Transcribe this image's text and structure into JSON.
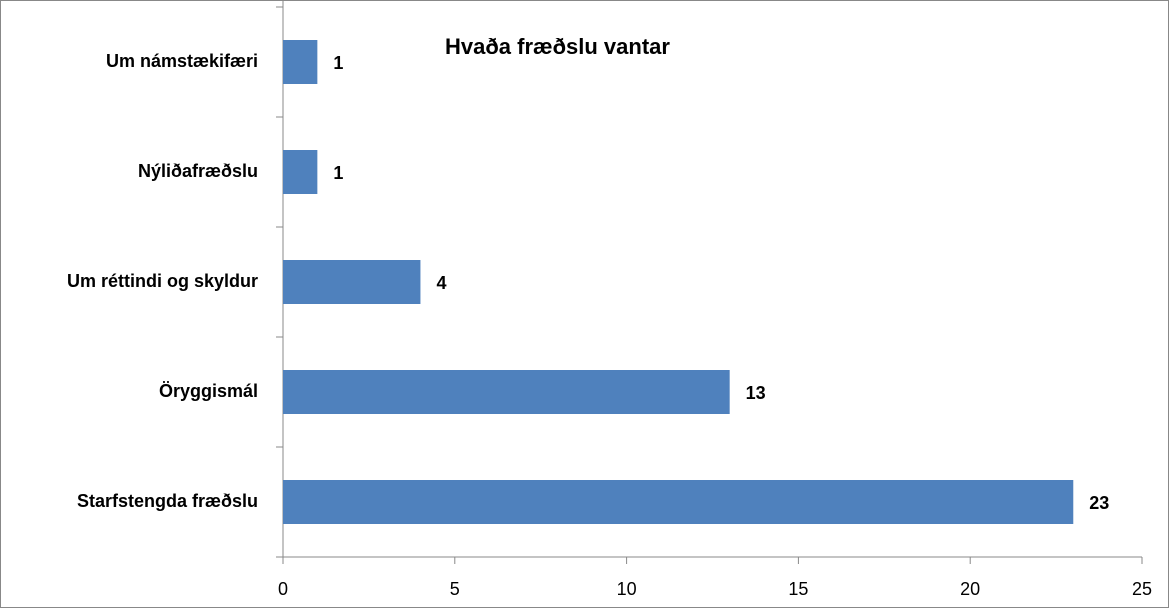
{
  "chart_data": {
    "type": "bar",
    "horizontal": true,
    "title": "Hvaða fræðslu vantar",
    "categories": [
      "Um námstækifæri",
      "Nýliðafræðslu",
      "Um réttindi og skyldur",
      "Öryggismál",
      "Starfstengda fræðslu"
    ],
    "values": [
      1,
      1,
      4,
      13,
      23
    ],
    "color": "#4f81bd",
    "xlim": [
      0,
      25
    ],
    "xticks": [
      0,
      5,
      10,
      15,
      20,
      25
    ],
    "grid": false
  }
}
